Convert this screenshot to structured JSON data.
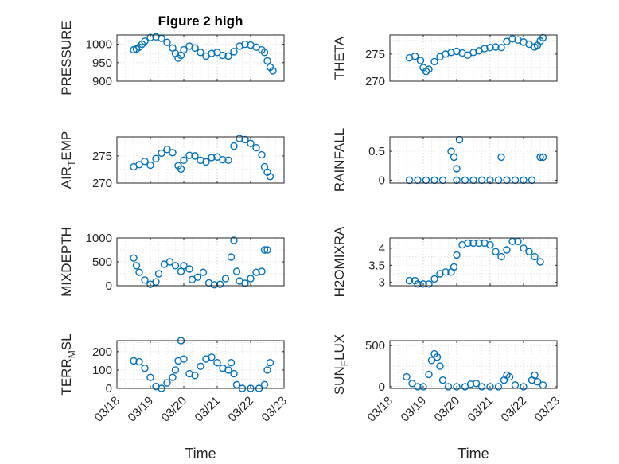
{
  "figure_title": "Figure 2 high",
  "marker_color": "#0072BD",
  "chart_data": [
    {
      "type": "scatter",
      "ylabel": "PRESSURE",
      "title": "Figure 2 high",
      "ylim": [
        900,
        1025
      ],
      "yticks": [
        "900",
        "950",
        "1000"
      ],
      "ytick_values": [
        900,
        950,
        1000
      ],
      "grid": true,
      "xlim": [
        "03/18",
        "03/23"
      ],
      "points": [
        [
          "03/18 12:00",
          985
        ],
        [
          "03/18 14:00",
          987
        ],
        [
          "03/18 16:00",
          992
        ],
        [
          "03/18 18:00",
          1000
        ],
        [
          "03/18 20:00",
          1008
        ],
        [
          "03/19 00:00",
          1018
        ],
        [
          "03/19 04:00",
          1020
        ],
        [
          "03/19 08:00",
          1016
        ],
        [
          "03/19 12:00",
          1005
        ],
        [
          "03/19 16:00",
          990
        ],
        [
          "03/19 18:00",
          975
        ],
        [
          "03/19 20:00",
          962
        ],
        [
          "03/19 22:00",
          970
        ],
        [
          "03/20 00:00",
          985
        ],
        [
          "03/20 04:00",
          995
        ],
        [
          "03/20 08:00",
          990
        ],
        [
          "03/20 12:00",
          978
        ],
        [
          "03/20 16:00",
          968
        ],
        [
          "03/20 20:00",
          975
        ],
        [
          "03/21 00:00",
          978
        ],
        [
          "03/21 04:00",
          970
        ],
        [
          "03/21 08:00",
          968
        ],
        [
          "03/21 12:00",
          980
        ],
        [
          "03/21 16:00",
          995
        ],
        [
          "03/21 20:00",
          1000
        ],
        [
          "03/22 00:00",
          998
        ],
        [
          "03/22 04:00",
          992
        ],
        [
          "03/22 08:00",
          985
        ],
        [
          "03/22 10:00",
          978
        ],
        [
          "03/22 12:00",
          955
        ],
        [
          "03/22 14:00",
          938
        ],
        [
          "03/22 16:00",
          928
        ]
      ]
    },
    {
      "type": "scatter",
      "ylabel": "THETA",
      "ylim": [
        270,
        278.5
      ],
      "yticks": [
        "270",
        "275"
      ],
      "ytick_values": [
        270,
        275
      ],
      "grid": true,
      "xlim": [
        "03/18",
        "03/23"
      ],
      "points": [
        [
          "03/18 14:00",
          274.3
        ],
        [
          "03/18 18:00",
          274.6
        ],
        [
          "03/18 22:00",
          273.8
        ],
        [
          "03/19 00:00",
          272.5
        ],
        [
          "03/19 02:00",
          271.8
        ],
        [
          "03/19 04:00",
          272.2
        ],
        [
          "03/19 08:00",
          273.6
        ],
        [
          "03/19 12:00",
          274.5
        ],
        [
          "03/19 16:00",
          275.0
        ],
        [
          "03/19 20:00",
          275.3
        ],
        [
          "03/20 00:00",
          275.5
        ],
        [
          "03/20 04:00",
          275.2
        ],
        [
          "03/20 08:00",
          274.8
        ],
        [
          "03/20 12:00",
          275.3
        ],
        [
          "03/20 16:00",
          275.6
        ],
        [
          "03/20 20:00",
          276.0
        ],
        [
          "03/21 00:00",
          276.2
        ],
        [
          "03/21 04:00",
          276.3
        ],
        [
          "03/21 08:00",
          276.2
        ],
        [
          "03/21 12:00",
          277.3
        ],
        [
          "03/21 16:00",
          277.8
        ],
        [
          "03/21 20:00",
          277.6
        ],
        [
          "03/22 00:00",
          277.2
        ],
        [
          "03/22 04:00",
          276.8
        ],
        [
          "03/22 08:00",
          276.3
        ],
        [
          "03/22 10:00",
          276.6
        ],
        [
          "03/22 12:00",
          277.4
        ],
        [
          "03/22 14:00",
          278.0
        ]
      ]
    },
    {
      "type": "scatter",
      "ylabel": "AIR_TEMP",
      "ylabel_main": "AIR",
      "ylabel_sub": "T",
      "ylabel_rest": "EMP",
      "ylim": [
        270,
        278.5
      ],
      "yticks": [
        "270",
        "275"
      ],
      "ytick_values": [
        270,
        275
      ],
      "grid": true,
      "xlim": [
        "03/18",
        "03/23"
      ],
      "points": [
        [
          "03/18 12:00",
          273.0
        ],
        [
          "03/18 16:00",
          273.4
        ],
        [
          "03/18 20:00",
          274.0
        ],
        [
          "03/19 00:00",
          273.3
        ],
        [
          "03/19 04:00",
          274.5
        ],
        [
          "03/19 08:00",
          275.5
        ],
        [
          "03/19 12:00",
          276.2
        ],
        [
          "03/19 16:00",
          275.6
        ],
        [
          "03/19 20:00",
          273.2
        ],
        [
          "03/19 22:00",
          272.6
        ],
        [
          "03/20 00:00",
          274.2
        ],
        [
          "03/20 04:00",
          275.1
        ],
        [
          "03/20 08:00",
          275.0
        ],
        [
          "03/20 12:00",
          274.2
        ],
        [
          "03/20 16:00",
          273.9
        ],
        [
          "03/20 20:00",
          274.7
        ],
        [
          "03/21 00:00",
          274.8
        ],
        [
          "03/21 04:00",
          274.3
        ],
        [
          "03/21 08:00",
          274.2
        ],
        [
          "03/21 12:00",
          276.8
        ],
        [
          "03/21 16:00",
          278.2
        ],
        [
          "03/21 20:00",
          278.0
        ],
        [
          "03/22 00:00",
          277.3
        ],
        [
          "03/22 04:00",
          276.5
        ],
        [
          "03/22 08:00",
          275.2
        ],
        [
          "03/22 10:00",
          273.0
        ],
        [
          "03/22 12:00",
          272.0
        ],
        [
          "03/22 14:00",
          271.2
        ]
      ]
    },
    {
      "type": "scatter",
      "ylabel": "RAINFALL",
      "ylim": [
        -0.05,
        0.75
      ],
      "yticks": [
        "0",
        "0.5"
      ],
      "ytick_values": [
        0,
        0.5
      ],
      "grid": true,
      "xlim": [
        "03/18",
        "03/23"
      ],
      "points": [
        [
          "03/18 14:00",
          0
        ],
        [
          "03/18 20:00",
          0
        ],
        [
          "03/19 02:00",
          0
        ],
        [
          "03/19 08:00",
          0
        ],
        [
          "03/19 14:00",
          0
        ],
        [
          "03/19 20:00",
          0.5
        ],
        [
          "03/19 22:00",
          0.4
        ],
        [
          "03/20 00:00",
          0.2
        ],
        [
          "03/20 00:00",
          0
        ],
        [
          "03/20 02:00",
          0.7
        ],
        [
          "03/20 06:00",
          0
        ],
        [
          "03/20 12:00",
          0
        ],
        [
          "03/20 18:00",
          0
        ],
        [
          "03/21 00:00",
          0
        ],
        [
          "03/21 06:00",
          0
        ],
        [
          "03/21 08:00",
          0.4
        ],
        [
          "03/21 12:00",
          0
        ],
        [
          "03/21 18:00",
          0
        ],
        [
          "03/22 00:00",
          0
        ],
        [
          "03/22 06:00",
          0
        ],
        [
          "03/22 12:00",
          0.4
        ],
        [
          "03/22 14:00",
          0.4
        ]
      ]
    },
    {
      "type": "scatter",
      "ylabel": "MIXDEPTH",
      "ylim": [
        0,
        1000
      ],
      "yticks": [
        "0",
        "500",
        "1000"
      ],
      "ytick_values": [
        0,
        500,
        1000
      ],
      "grid": true,
      "xlim": [
        "03/18",
        "03/23"
      ],
      "points": [
        [
          "03/18 12:00",
          580
        ],
        [
          "03/18 14:00",
          420
        ],
        [
          "03/18 16:00",
          280
        ],
        [
          "03/18 20:00",
          120
        ],
        [
          "03/19 00:00",
          30
        ],
        [
          "03/19 04:00",
          80
        ],
        [
          "03/19 06:00",
          250
        ],
        [
          "03/19 10:00",
          450
        ],
        [
          "03/19 14:00",
          500
        ],
        [
          "03/19 18:00",
          420
        ],
        [
          "03/19 22:00",
          300
        ],
        [
          "03/20 00:00",
          420
        ],
        [
          "03/20 04:00",
          350
        ],
        [
          "03/20 06:00",
          130
        ],
        [
          "03/20 10:00",
          180
        ],
        [
          "03/20 14:00",
          280
        ],
        [
          "03/20 18:00",
          60
        ],
        [
          "03/20 22:00",
          20
        ],
        [
          "03/21 02:00",
          30
        ],
        [
          "03/21 06:00",
          150
        ],
        [
          "03/21 10:00",
          600
        ],
        [
          "03/21 12:00",
          950
        ],
        [
          "03/21 14:00",
          300
        ],
        [
          "03/21 16:00",
          100
        ],
        [
          "03/21 20:00",
          50
        ],
        [
          "03/22 00:00",
          150
        ],
        [
          "03/22 04:00",
          280
        ],
        [
          "03/22 08:00",
          300
        ],
        [
          "03/22 10:00",
          750
        ],
        [
          "03/22 12:00",
          750
        ]
      ]
    },
    {
      "type": "scatter",
      "ylabel": "H2OMIXRA",
      "ylim": [
        2.9,
        4.3
      ],
      "yticks": [
        "3",
        "3.5",
        "4"
      ],
      "ytick_values": [
        3,
        3.5,
        4
      ],
      "grid": true,
      "xlim": [
        "03/18",
        "03/23"
      ],
      "points": [
        [
          "03/18 14:00",
          3.05
        ],
        [
          "03/18 18:00",
          3.05
        ],
        [
          "03/18 20:00",
          2.95
        ],
        [
          "03/19 00:00",
          2.95
        ],
        [
          "03/19 04:00",
          2.95
        ],
        [
          "03/19 08:00",
          3.1
        ],
        [
          "03/19 12:00",
          3.25
        ],
        [
          "03/19 16:00",
          3.3
        ],
        [
          "03/19 20:00",
          3.3
        ],
        [
          "03/19 22:00",
          3.45
        ],
        [
          "03/20 00:00",
          3.8
        ],
        [
          "03/20 04:00",
          4.1
        ],
        [
          "03/20 08:00",
          4.15
        ],
        [
          "03/20 12:00",
          4.15
        ],
        [
          "03/20 16:00",
          4.15
        ],
        [
          "03/20 20:00",
          4.15
        ],
        [
          "03/21 00:00",
          4.1
        ],
        [
          "03/21 04:00",
          3.9
        ],
        [
          "03/21 08:00",
          3.75
        ],
        [
          "03/21 12:00",
          3.95
        ],
        [
          "03/21 16:00",
          4.2
        ],
        [
          "03/21 20:00",
          4.2
        ],
        [
          "03/22 00:00",
          4.0
        ],
        [
          "03/22 04:00",
          3.9
        ],
        [
          "03/22 08:00",
          3.75
        ],
        [
          "03/22 12:00",
          3.6
        ]
      ]
    },
    {
      "type": "scatter",
      "ylabel": "TERR_MSL",
      "ylabel_main": "TERR",
      "ylabel_sub": "M",
      "ylabel_rest": "SL",
      "ylim": [
        0,
        260
      ],
      "yticks": [
        "0",
        "100",
        "200"
      ],
      "ytick_values": [
        0,
        100,
        200
      ],
      "grid": true,
      "xlim": [
        "03/18",
        "03/23"
      ],
      "points": [
        [
          "03/18 12:00",
          150
        ],
        [
          "03/18 16:00",
          145
        ],
        [
          "03/18 20:00",
          110
        ],
        [
          "03/19 00:00",
          60
        ],
        [
          "03/19 04:00",
          10
        ],
        [
          "03/19 08:00",
          0
        ],
        [
          "03/19 12:00",
          30
        ],
        [
          "03/19 16:00",
          60
        ],
        [
          "03/19 18:00",
          100
        ],
        [
          "03/19 20:00",
          150
        ],
        [
          "03/19 22:00",
          260
        ],
        [
          "03/20 00:00",
          160
        ],
        [
          "03/20 04:00",
          80
        ],
        [
          "03/20 08:00",
          70
        ],
        [
          "03/20 12:00",
          120
        ],
        [
          "03/20 16:00",
          160
        ],
        [
          "03/20 20:00",
          170
        ],
        [
          "03/21 00:00",
          140
        ],
        [
          "03/21 04:00",
          110
        ],
        [
          "03/21 08:00",
          100
        ],
        [
          "03/21 10:00",
          140
        ],
        [
          "03/21 12:00",
          80
        ],
        [
          "03/21 14:00",
          20
        ],
        [
          "03/21 18:00",
          0
        ],
        [
          "03/22 00:00",
          0
        ],
        [
          "03/22 06:00",
          0
        ],
        [
          "03/22 10:00",
          20
        ],
        [
          "03/22 12:00",
          100
        ],
        [
          "03/22 14:00",
          140
        ]
      ]
    },
    {
      "type": "scatter",
      "ylabel": "SUN_FLUX",
      "ylabel_main": "SUN",
      "ylabel_sub": "F",
      "ylabel_rest": "LUX",
      "ylim": [
        -20,
        560
      ],
      "yticks": [
        "0",
        "500"
      ],
      "ytick_values": [
        0,
        500
      ],
      "grid": true,
      "xlim": [
        "03/18",
        "03/23"
      ],
      "points": [
        [
          "03/18 12:00",
          120
        ],
        [
          "03/18 16:00",
          40
        ],
        [
          "03/18 20:00",
          0
        ],
        [
          "03/19 00:00",
          0
        ],
        [
          "03/19 04:00",
          150
        ],
        [
          "03/19 06:00",
          320
        ],
        [
          "03/19 08:00",
          400
        ],
        [
          "03/19 10:00",
          360
        ],
        [
          "03/19 12:00",
          250
        ],
        [
          "03/19 14:00",
          80
        ],
        [
          "03/19 18:00",
          0
        ],
        [
          "03/20 00:00",
          0
        ],
        [
          "03/20 06:00",
          0
        ],
        [
          "03/20 10:00",
          30
        ],
        [
          "03/20 14:00",
          40
        ],
        [
          "03/20 18:00",
          0
        ],
        [
          "03/21 00:00",
          0
        ],
        [
          "03/21 06:00",
          0
        ],
        [
          "03/21 10:00",
          80
        ],
        [
          "03/21 12:00",
          140
        ],
        [
          "03/21 14:00",
          120
        ],
        [
          "03/21 18:00",
          20
        ],
        [
          "03/22 00:00",
          0
        ],
        [
          "03/22 06:00",
          80
        ],
        [
          "03/22 08:00",
          140
        ],
        [
          "03/22 10:00",
          60
        ],
        [
          "03/22 14:00",
          20
        ]
      ]
    }
  ],
  "x_axis": {
    "ticks": [
      "03/18",
      "03/19",
      "03/20",
      "03/21",
      "03/22",
      "03/23"
    ],
    "label": "Time"
  }
}
